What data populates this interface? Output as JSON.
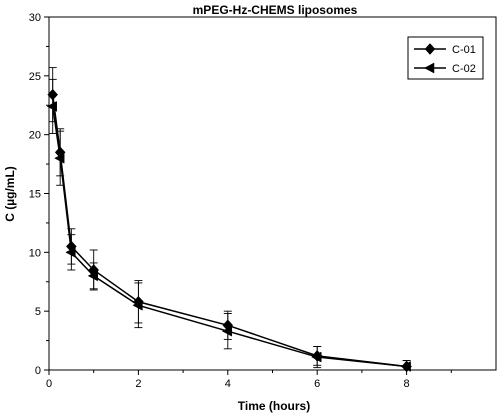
{
  "chart_data": {
    "type": "line",
    "title": "mPEG-Hz-CHEMS liposomes",
    "xlabel": "Time (hours)",
    "ylabel": "C (µg/mL)",
    "xlim": [
      0,
      10
    ],
    "ylim": [
      0,
      30
    ],
    "xticks": [
      0,
      2,
      4,
      6,
      8
    ],
    "yticks": [
      0,
      5,
      10,
      15,
      20,
      25,
      30
    ],
    "grid": false,
    "legend_position": "top-right",
    "series": [
      {
        "name": "C-01",
        "marker": "diamond",
        "color": "#000000",
        "x": [
          0.083,
          0.25,
          0.5,
          1,
          2,
          4,
          6,
          8
        ],
        "y": [
          23.4,
          18.5,
          10.5,
          8.5,
          5.8,
          3.8,
          1.2,
          0.3
        ],
        "err": [
          2.3,
          2.0,
          1.5,
          1.7,
          1.8,
          1.2,
          0.8,
          0.5
        ]
      },
      {
        "name": "C-02",
        "marker": "triangle-left",
        "color": "#000000",
        "x": [
          0.083,
          0.25,
          0.5,
          1,
          2,
          4,
          6,
          8
        ],
        "y": [
          22.4,
          18.0,
          10.0,
          8.0,
          5.5,
          3.3,
          1.1,
          0.3
        ],
        "err": [
          2.3,
          2.3,
          1.5,
          1.1,
          1.9,
          1.5,
          0.9,
          0.5
        ]
      }
    ]
  }
}
